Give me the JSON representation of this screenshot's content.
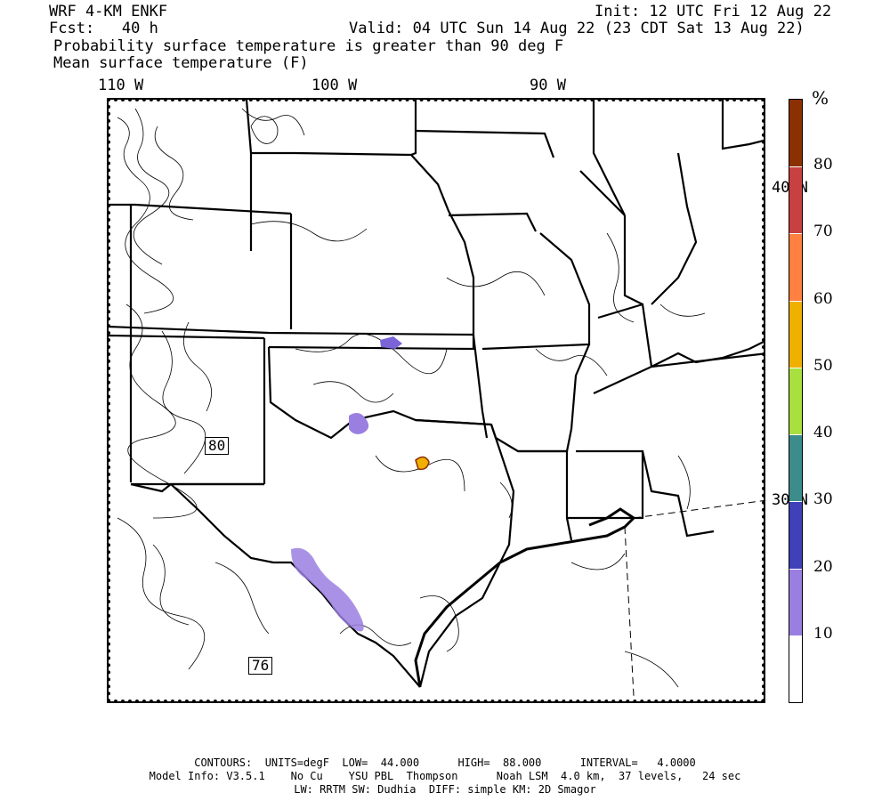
{
  "header": {
    "model": "WRF 4-KM ENKF",
    "init": "Init: 12 UTC Fri 12 Aug 22",
    "fcst": "Fcst:   40 h",
    "valid": "Valid: 04 UTC Sun 14 Aug 22 (23 CDT Sat 13 Aug 22)",
    "field1": "Probability surface temperature is greater than 90 deg F",
    "field2": "Mean surface temperature (F)"
  },
  "map": {
    "lon_labels": [
      "110 W",
      "100 W",
      "90 W"
    ],
    "lat_labels": [
      "40 N",
      "30 N"
    ],
    "contour_labels": [
      "80",
      "76"
    ]
  },
  "colorbar": {
    "unit": "%",
    "ticks": [
      "80",
      "70",
      "60",
      "50",
      "40",
      "30",
      "20",
      "10"
    ],
    "colors": [
      "#ffffff",
      "#9a7fe0",
      "#4040b8",
      "#3c8c8c",
      "#a8e040",
      "#f0b000",
      "#ff8040",
      "#c84040",
      "#8b3000"
    ]
  },
  "footer": {
    "line1": "CONTOURS:  UNITS=degF  LOW=  44.000      HIGH=  88.000      INTERVAL=   4.0000",
    "line2": "Model Info: V3.5.1    No Cu    YSU PBL  Thompson      Noah LSM  4.0 km,  37 levels,   24 sec",
    "line3": "LW: RRTM SW: Dudhia  DIFF: simple KM: 2D Smagor"
  }
}
